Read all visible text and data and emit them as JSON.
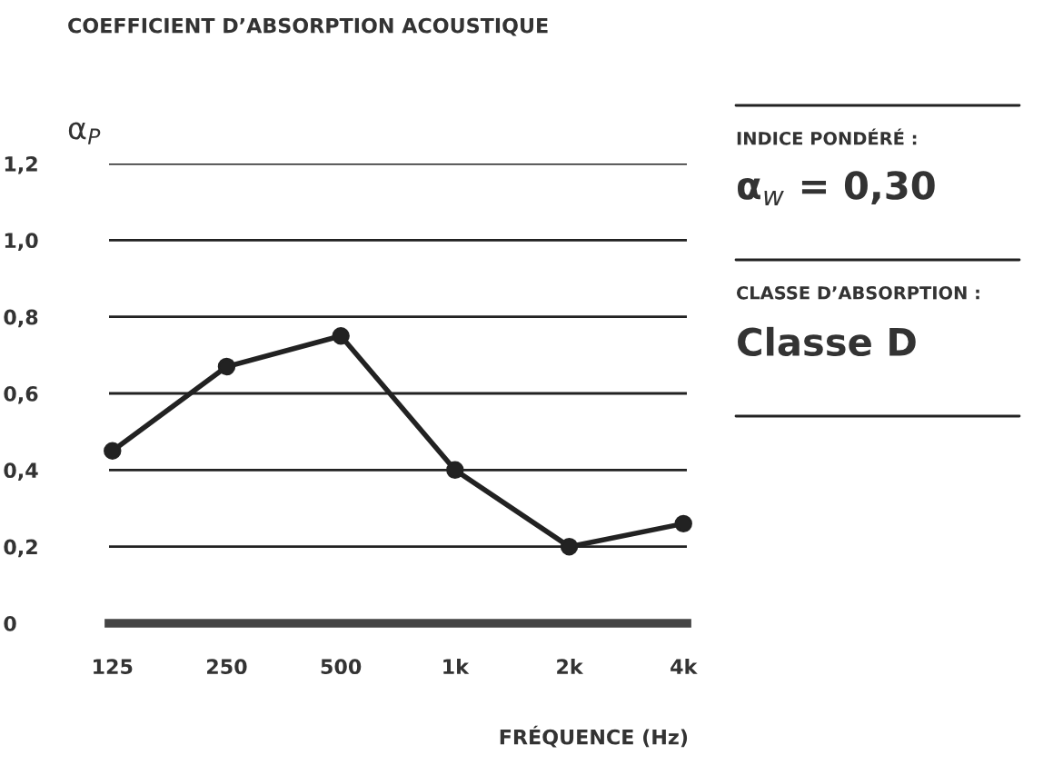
{
  "chart_data": {
    "type": "line",
    "title": "COEFFICIENT D’ABSORPTION ACOUSTIQUE",
    "ylabel": "α$_{P}$",
    "xlabel": "FRÉQUENCE (Hz)",
    "categories": [
      "125",
      "250",
      "500",
      "1k",
      "2k",
      "4k"
    ],
    "series": [
      {
        "color": "#222222",
        "values": [
          0.45,
          0.67,
          0.75,
          0.4,
          0.2,
          0.26
        ]
      }
    ],
    "ylim": [
      0,
      1.2
    ],
    "yticks": [
      0,
      {
        "value": 0.2,
        "label": "0,2"
      },
      {
        "value": 0.4,
        "label": "0,4"
      },
      {
        "value": 0.6,
        "label": "0,6"
      },
      {
        "value": 0.8,
        "label": "0,8"
      },
      {
        "value": 1.0,
        "label": "1,0"
      },
      {
        "value": 1.2,
        "label": "1,2"
      }
    ],
    "grid": "y",
    "marker": "circle",
    "line_style": "solid",
    "legend": false,
    "annotations": [
      "INDICE PONDÉRÉ :",
      "α$_{w}$ = 0,30",
      "CLASSE D’ABSORPTION :",
      "Classe D"
    ]
  }
}
